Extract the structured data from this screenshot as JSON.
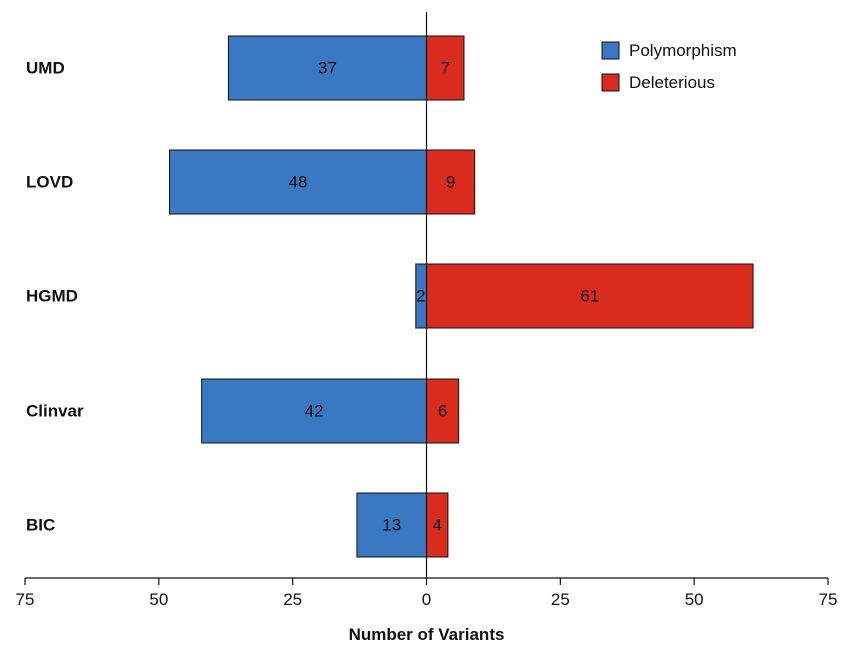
{
  "chart_data": {
    "type": "bar",
    "orientation": "horizontal",
    "stacking": "diverging",
    "categories": [
      "UMD",
      "LOVD",
      "HGMD",
      "Clinvar",
      "BIC"
    ],
    "series": [
      {
        "name": "Polymorphism",
        "values": [
          37,
          48,
          2,
          42,
          13
        ],
        "direction": "negative",
        "color": "#3a78c2"
      },
      {
        "name": "Deleterious",
        "values": [
          7,
          9,
          61,
          6,
          4
        ],
        "direction": "positive",
        "color": "#d92b1e"
      }
    ],
    "xlabel": "Number of Variants",
    "ylabel": "",
    "xlim": [
      -75,
      75
    ],
    "x_ticks": [
      -75,
      -50,
      -25,
      0,
      25,
      50,
      75
    ],
    "x_tick_labels": [
      "75",
      "50",
      "25",
      "0",
      "25",
      "50",
      "75"
    ],
    "legend_position": "top-right",
    "grid": false
  }
}
